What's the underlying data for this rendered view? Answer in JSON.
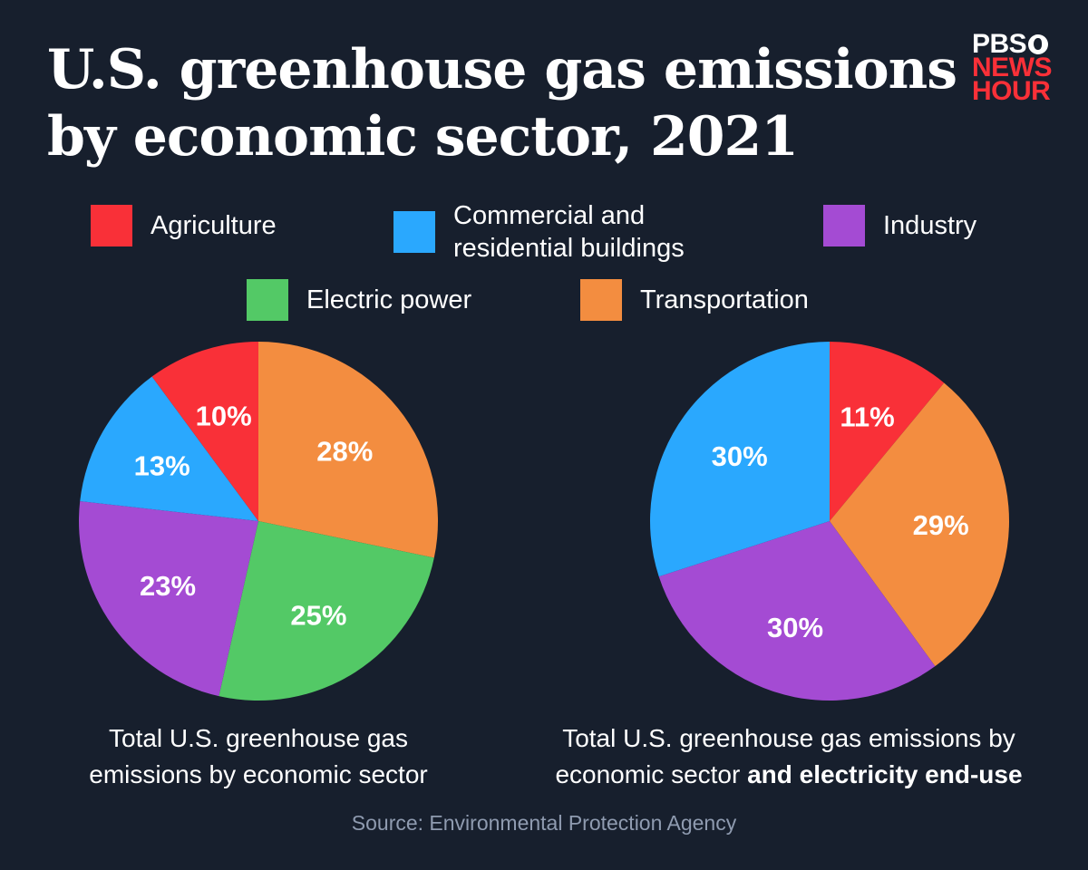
{
  "title_line1": "U.S. greenhouse gas emissions",
  "title_line2": "by economic sector, 2021",
  "logo": {
    "line1": "PBS",
    "line2": "NEWS",
    "line3": "HOUR"
  },
  "legend": [
    {
      "label": "Agriculture",
      "color": "#f93038"
    },
    {
      "label_line1": "Commercial and",
      "label_line2": "residential buildings",
      "color": "#2aa8fe"
    },
    {
      "label": "Industry",
      "color": "#a44bd3"
    },
    {
      "label": "Electric power",
      "color": "#53c966"
    },
    {
      "label": "Transportation",
      "color": "#f38d40"
    }
  ],
  "chart_data": [
    {
      "type": "pie",
      "caption_line1": "Total U.S. greenhouse gas",
      "caption_line2": "emissions by economic sector",
      "slices": [
        {
          "name": "Transportation",
          "value": 28,
          "label": "28%",
          "color": "#f38d40"
        },
        {
          "name": "Electric power",
          "value": 25,
          "label": "25%",
          "color": "#53c966"
        },
        {
          "name": "Industry",
          "value": 23,
          "label": "23%",
          "color": "#a44bd3"
        },
        {
          "name": "Commercial and residential buildings",
          "value": 13,
          "label": "13%",
          "color": "#2aa8fe"
        },
        {
          "name": "Agriculture",
          "value": 10,
          "label": "10%",
          "color": "#f93038"
        }
      ]
    },
    {
      "type": "pie",
      "caption_line1": "Total U.S. greenhouse gas emissions by",
      "caption_line2": "economic sector ",
      "caption_line2_bold": "and electricity end-use",
      "slices": [
        {
          "name": "Agriculture",
          "value": 11,
          "label": "11%",
          "color": "#f93038"
        },
        {
          "name": "Transportation",
          "value": 29,
          "label": "29%",
          "color": "#f38d40"
        },
        {
          "name": "Industry",
          "value": 30,
          "label": "30%",
          "color": "#a44bd3"
        },
        {
          "name": "Commercial and residential buildings",
          "value": 30,
          "label": "30%",
          "color": "#2aa8fe"
        }
      ]
    }
  ],
  "source": "Source: Environmental Protection Agency"
}
